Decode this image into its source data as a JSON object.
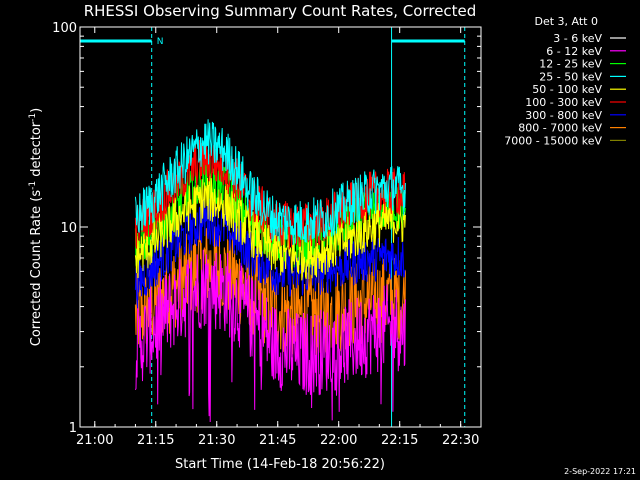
{
  "chart_data": {
    "type": "line",
    "title": "RHESSI Observing Summary Count Rates, Corrected",
    "xlabel": "Start Time (14-Feb-18 20:56:22)",
    "ylabel_main": "Corrected Count Rate (s",
    "ylabel_sup1": "-1",
    "ylabel_mid": " detector",
    "ylabel_sup2": "-1",
    "ylabel_end": ")",
    "yscale": "log",
    "xlim": [
      "20:56:22",
      "22:35:00"
    ],
    "ylim": [
      1,
      100
    ],
    "x_ticks": [
      "21:00",
      "21:15",
      "21:30",
      "21:45",
      "22:00",
      "22:15",
      "22:30"
    ],
    "y_ticks": [
      "1",
      "10",
      "100"
    ],
    "legend_header": "Det 3, Att 0",
    "legend_position": "top-right, outside plot",
    "footer_date": "2-Sep-2022 17:21",
    "n_marker": "N",
    "data_window": [
      "21:10:00",
      "22:16:30"
    ],
    "night_intervals": [
      [
        "20:56:22",
        "21:14:00"
      ],
      [
        "22:13:00",
        "22:31:00"
      ]
    ],
    "series": [
      {
        "name": "3 - 6 keV",
        "color": "#ffffff",
        "profile": [
          [
            "21:10",
            0
          ],
          [
            "22:16",
            0
          ]
        ]
      },
      {
        "name": "6 - 12 keV",
        "color": "#ff00ff",
        "profile": [
          [
            "21:10",
            2.5
          ],
          [
            "21:15",
            3.2
          ],
          [
            "21:22",
            4.5
          ],
          [
            "21:27",
            5.2
          ],
          [
            "21:32",
            4.8
          ],
          [
            "21:38",
            3.6
          ],
          [
            "21:44",
            2.6
          ],
          [
            "21:50",
            2.3
          ],
          [
            "21:56",
            2.4
          ],
          [
            "22:02",
            2.6
          ],
          [
            "22:08",
            3.0
          ],
          [
            "22:14",
            3.2
          ],
          [
            "22:16",
            3.0
          ]
        ]
      },
      {
        "name": "12 - 25 keV",
        "color": "#00ff00",
        "profile": [
          [
            "21:10",
            8
          ],
          [
            "21:15",
            9.5
          ],
          [
            "21:22",
            14
          ],
          [
            "21:27",
            17
          ],
          [
            "21:32",
            15.5
          ],
          [
            "21:38",
            11
          ],
          [
            "21:44",
            8.5
          ],
          [
            "21:50",
            8
          ],
          [
            "21:56",
            8.5
          ],
          [
            "22:02",
            10
          ],
          [
            "22:08",
            12
          ],
          [
            "22:14",
            12.5
          ],
          [
            "22:16",
            12
          ]
        ]
      },
      {
        "name": "25 - 50 keV",
        "color": "#00ffff",
        "profile": [
          [
            "21:10",
            11
          ],
          [
            "21:15",
            14
          ],
          [
            "21:22",
            21
          ],
          [
            "21:27",
            27
          ],
          [
            "21:32",
            24
          ],
          [
            "21:38",
            15
          ],
          [
            "21:44",
            11
          ],
          [
            "21:50",
            10.5
          ],
          [
            "21:56",
            11
          ],
          [
            "22:02",
            13
          ],
          [
            "22:08",
            15
          ],
          [
            "22:14",
            16
          ],
          [
            "22:16",
            15
          ]
        ]
      },
      {
        "name": "50 - 100 keV",
        "color": "#ffff00",
        "profile": [
          [
            "21:10",
            7
          ],
          [
            "21:15",
            8.5
          ],
          [
            "21:22",
            12
          ],
          [
            "21:27",
            14
          ],
          [
            "21:32",
            13
          ],
          [
            "21:38",
            9.5
          ],
          [
            "21:44",
            7.5
          ],
          [
            "21:50",
            7
          ],
          [
            "21:56",
            7.5
          ],
          [
            "22:02",
            8.5
          ],
          [
            "22:08",
            10
          ],
          [
            "22:14",
            11
          ],
          [
            "22:16",
            10.5
          ]
        ]
      },
      {
        "name": "100 - 300 keV",
        "color": "#ff0000",
        "profile": [
          [
            "21:10",
            10
          ],
          [
            "21:15",
            12.5
          ],
          [
            "21:22",
            18
          ],
          [
            "21:27",
            22
          ],
          [
            "21:32",
            20
          ],
          [
            "21:38",
            14
          ],
          [
            "21:44",
            10.5
          ],
          [
            "21:50",
            10
          ],
          [
            "21:56",
            10.5
          ],
          [
            "22:02",
            12.5
          ],
          [
            "22:08",
            14.5
          ],
          [
            "22:14",
            15
          ],
          [
            "22:16",
            14.5
          ]
        ]
      },
      {
        "name": "300 - 800 keV",
        "color": "#0000ff",
        "profile": [
          [
            "21:10",
            5
          ],
          [
            "21:15",
            6.5
          ],
          [
            "21:22",
            9
          ],
          [
            "21:27",
            11
          ],
          [
            "21:32",
            10
          ],
          [
            "21:38",
            7.5
          ],
          [
            "21:44",
            6
          ],
          [
            "21:50",
            5.8
          ],
          [
            "21:56",
            6
          ],
          [
            "22:02",
            6.5
          ],
          [
            "22:08",
            7
          ],
          [
            "22:14",
            7.2
          ],
          [
            "22:16",
            7
          ]
        ]
      },
      {
        "name": "800 - 7000 keV",
        "color": "#ff8000",
        "profile": [
          [
            "21:10",
            3.5
          ],
          [
            "21:15",
            4.2
          ],
          [
            "21:22",
            5.5
          ],
          [
            "21:27",
            6.5
          ],
          [
            "21:32",
            6
          ],
          [
            "21:38",
            4.8
          ],
          [
            "21:44",
            3.9
          ],
          [
            "21:50",
            3.6
          ],
          [
            "21:56",
            3.7
          ],
          [
            "22:02",
            4
          ],
          [
            "22:08",
            4.3
          ],
          [
            "22:14",
            4.4
          ],
          [
            "22:16",
            4.3
          ]
        ]
      },
      {
        "name": "7000 - 15000 keV",
        "color": "#808000",
        "profile": [
          [
            "21:10",
            0
          ],
          [
            "22:16",
            0
          ]
        ]
      }
    ]
  }
}
